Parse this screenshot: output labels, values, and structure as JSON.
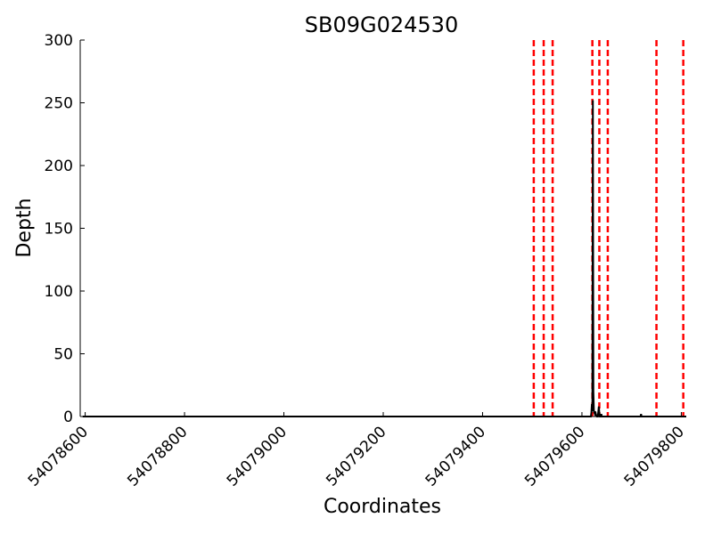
{
  "chart_data": {
    "type": "line",
    "title": "SB09G024530",
    "xlabel": "Coordinates",
    "ylabel": "Depth",
    "xlim": [
      54078590,
      54079810
    ],
    "ylim": [
      0,
      300
    ],
    "xticks": [
      54078600,
      54078800,
      54079000,
      54079200,
      54079400,
      54079600,
      54079800
    ],
    "yticks": [
      0,
      50,
      100,
      150,
      200,
      250,
      300
    ],
    "grid": false,
    "series": [
      {
        "color": "#000000",
        "points": [
          [
            54078595,
            0
          ],
          [
            54079618,
            0
          ],
          [
            54079619,
            3
          ],
          [
            54079620,
            10
          ],
          [
            54079621,
            4
          ],
          [
            54079622,
            252
          ],
          [
            54079623,
            20
          ],
          [
            54079624,
            5
          ],
          [
            54079625,
            3
          ],
          [
            54079626,
            2
          ],
          [
            54079627,
            4
          ],
          [
            54079628,
            2
          ],
          [
            54079629,
            1
          ],
          [
            54079630,
            0
          ],
          [
            54079632,
            0
          ],
          [
            54079633,
            4
          ],
          [
            54079634,
            8
          ],
          [
            54079635,
            3
          ],
          [
            54079636,
            0
          ],
          [
            54079638,
            0
          ],
          [
            54079639,
            2
          ],
          [
            54079640,
            0
          ],
          [
            54079718,
            0
          ],
          [
            54079719,
            2
          ],
          [
            54079720,
            0
          ],
          [
            54079810,
            0
          ]
        ]
      }
    ],
    "vlines": {
      "color": "#ff0000",
      "style": "dashed",
      "x": [
        54079503,
        54079523,
        54079541,
        54079621,
        54079635,
        54079652,
        54079750,
        54079804
      ]
    }
  }
}
